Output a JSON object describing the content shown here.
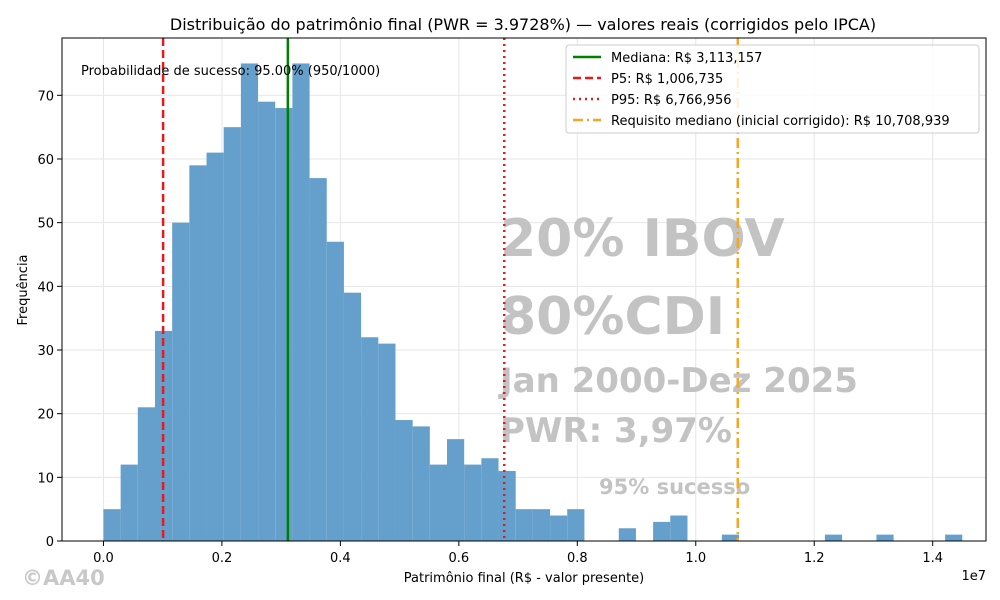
{
  "chart_data": {
    "type": "bar",
    "title": "Distribuição do patrimônio final (PWR = 3.9728%) — valores reais (corrigidos pelo IPCA)",
    "xlabel": "Patrimônio final (R$ - valor presente)",
    "ylabel": "Frequência",
    "x_offset_label": "1e7",
    "xlim": [
      -0.07,
      1.49
    ],
    "ylim": [
      0,
      79
    ],
    "x_ticks": [
      0.0,
      0.2,
      0.4,
      0.6,
      0.8,
      1.0,
      1.2,
      1.4
    ],
    "x_tick_labels": [
      "0.0",
      "0.2",
      "0.4",
      "0.6",
      "0.8",
      "1.0",
      "1.2",
      "1.4"
    ],
    "y_ticks": [
      0,
      10,
      20,
      30,
      40,
      50,
      60,
      70
    ],
    "y_tick_labels": [
      "0",
      "10",
      "20",
      "30",
      "40",
      "50",
      "60",
      "70"
    ],
    "grid": true,
    "bar_color": "#64a0cb",
    "bin_width": 0.029,
    "bins": [
      {
        "x": 0.0,
        "count": 5
      },
      {
        "x": 0.029,
        "count": 12
      },
      {
        "x": 0.058,
        "count": 21
      },
      {
        "x": 0.087,
        "count": 33
      },
      {
        "x": 0.116,
        "count": 50
      },
      {
        "x": 0.145,
        "count": 59
      },
      {
        "x": 0.174,
        "count": 61
      },
      {
        "x": 0.203,
        "count": 65
      },
      {
        "x": 0.232,
        "count": 75
      },
      {
        "x": 0.261,
        "count": 69
      },
      {
        "x": 0.29,
        "count": 68
      },
      {
        "x": 0.319,
        "count": 75
      },
      {
        "x": 0.348,
        "count": 57
      },
      {
        "x": 0.377,
        "count": 47
      },
      {
        "x": 0.406,
        "count": 39
      },
      {
        "x": 0.435,
        "count": 32
      },
      {
        "x": 0.464,
        "count": 31
      },
      {
        "x": 0.493,
        "count": 19
      },
      {
        "x": 0.522,
        "count": 18
      },
      {
        "x": 0.551,
        "count": 12
      },
      {
        "x": 0.58,
        "count": 16
      },
      {
        "x": 0.609,
        "count": 12
      },
      {
        "x": 0.638,
        "count": 13
      },
      {
        "x": 0.667,
        "count": 11
      },
      {
        "x": 0.696,
        "count": 5
      },
      {
        "x": 0.725,
        "count": 5
      },
      {
        "x": 0.754,
        "count": 4
      },
      {
        "x": 0.783,
        "count": 5
      },
      {
        "x": 0.87,
        "count": 2
      },
      {
        "x": 0.928,
        "count": 3
      },
      {
        "x": 0.957,
        "count": 4
      },
      {
        "x": 1.044,
        "count": 1
      },
      {
        "x": 1.218,
        "count": 1
      },
      {
        "x": 1.305,
        "count": 1
      },
      {
        "x": 1.421,
        "count": 1
      }
    ],
    "lines": [
      {
        "label": "Mediana: R$ 3,113,157",
        "x": 0.3113157,
        "color": "#008000",
        "style": "solid"
      },
      {
        "label": "P5: R$ 1,006,735",
        "x": 0.1006735,
        "color": "#e41a1c",
        "style": "dashed"
      },
      {
        "label": "P95: R$ 6,766,956",
        "x": 0.6766956,
        "color": "#e41a1c",
        "style": "dotted"
      },
      {
        "label": "Requisito mediano (inicial corrigido): R$ 10,708,939",
        "x": 1.0708939,
        "color": "#f5a623",
        "style": "dashdot"
      }
    ],
    "legend_position": "top-right",
    "annotation": "Probabilidade de sucesso: 95.00% (950/1000)"
  },
  "watermark": {
    "line1": "20% IBOV",
    "line2": "80%CDI",
    "line3": "Jan 2000-Dez 2025",
    "line4": "PWR: 3,97%",
    "line5": "95% sucesso",
    "credit": "©AA40"
  }
}
